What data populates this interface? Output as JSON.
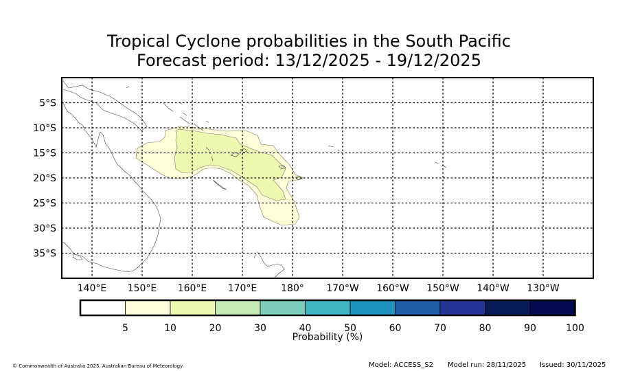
{
  "title_line1": "Tropical Cyclone probabilities in the South Pacific",
  "title_line2": "Forecast period: 13/12/2025 - 19/12/2025",
  "lon_labels": [
    "140°E",
    "150°E",
    "160°E",
    "170°E",
    "180°",
    "170°W",
    "160°W",
    "150°W",
    "140°W",
    "130°W"
  ],
  "lat_labels": [
    "5°S",
    "10°S",
    "15°S",
    "20°S",
    "25°S",
    "30°S",
    "35°S"
  ],
  "colorbar": {
    "label": "Probability (%)",
    "ticks": [
      "5",
      "10",
      "20",
      "30",
      "40",
      "50",
      "60",
      "70",
      "80",
      "90",
      "100"
    ],
    "colors": [
      "#ffffff",
      "#ffffd9",
      "#edf8b1",
      "#c7e9b4",
      "#7fcdbb",
      "#41b6c4",
      "#1d91c0",
      "#225ea8",
      "#253494",
      "#081d58",
      "#030a50"
    ]
  },
  "footer": {
    "copyright": "© Commonwealth of Australia 2025, Australian Bureau of Meteorology",
    "model": "Model: ACCESS_S2",
    "model_run": "Model run: 28/11/2025",
    "issued": "Issued: 30/11/2025"
  },
  "map_data": {
    "lon_range": [
      "134°E",
      "124°W"
    ],
    "lat_range": [
      "0°S",
      "40°S"
    ],
    "probability_regions": [
      {
        "level": "5-10%",
        "color": "#ffffd9"
      },
      {
        "level": "10-20%",
        "color": "#edf8b1"
      }
    ]
  }
}
